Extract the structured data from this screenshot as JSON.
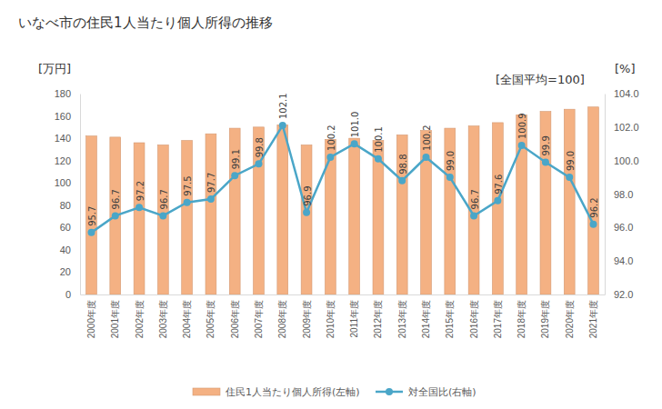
{
  "chart_data": {
    "type": "bar",
    "title": "いなべ市の住民1人当たり個人所得の推移",
    "y_label": "[万円]",
    "y2_label": "[%]",
    "annotations": [
      "[全国平均=100]"
    ],
    "categories": [
      "2000年度",
      "2001年度",
      "2002年度",
      "2003年度",
      "2004年度",
      "2005年度",
      "2006年度",
      "2007年度",
      "2008年度",
      "2009年度",
      "2010年度",
      "2011年度",
      "2012年度",
      "2013年度",
      "2014年度",
      "2015年度",
      "2016年度",
      "2017年度",
      "2018年度",
      "2019年度",
      "2020年度",
      "2021年度"
    ],
    "series": [
      {
        "name": "住民1人当たり個人所得(左軸)",
        "type": "bar",
        "color": "#f4b183",
        "values": [
          142,
          141,
          136,
          134,
          138,
          144,
          149,
          150,
          152,
          134,
          139,
          140,
          138,
          143,
          147,
          149,
          151,
          154,
          161,
          164,
          166,
          168
        ]
      },
      {
        "name": "対全国比(右軸)",
        "type": "line",
        "axis": "y2",
        "color": "#4aa6c8",
        "marker": "circle",
        "data_labels": true,
        "values": [
          95.7,
          96.7,
          97.2,
          96.7,
          97.5,
          97.7,
          99.1,
          99.8,
          102.1,
          96.9,
          100.2,
          101.0,
          100.1,
          98.8,
          100.2,
          99.0,
          96.7,
          97.6,
          100.9,
          99.9,
          99.0,
          96.2
        ],
        "value_labels": [
          "95.7",
          "96.7",
          "97.2",
          "96.7",
          "97.5",
          "97.7",
          "99.1",
          "99.8",
          "102.1",
          "96.9",
          "100.2",
          "101.0",
          "100.1",
          "98.8",
          "100.2",
          "99.0",
          "96.7",
          "97.6",
          "100.9",
          "99.9",
          "99.0",
          "96.2"
        ]
      }
    ],
    "ylim": [
      0,
      180
    ],
    "yticks": [
      0,
      20,
      40,
      60,
      80,
      100,
      120,
      140,
      160,
      180
    ],
    "y2lim": [
      92,
      104
    ],
    "y2ticks": [
      {
        "value": 92,
        "label": "92.0"
      },
      {
        "value": 94,
        "label": "94.0"
      },
      {
        "value": 96,
        "label": "96.0"
      },
      {
        "value": 98,
        "label": "98.0"
      },
      {
        "value": 100,
        "label": "100.0"
      },
      {
        "value": 102,
        "label": "102.0"
      },
      {
        "value": 104,
        "label": "104.0"
      }
    ],
    "grid": false,
    "legend": "bottom"
  }
}
